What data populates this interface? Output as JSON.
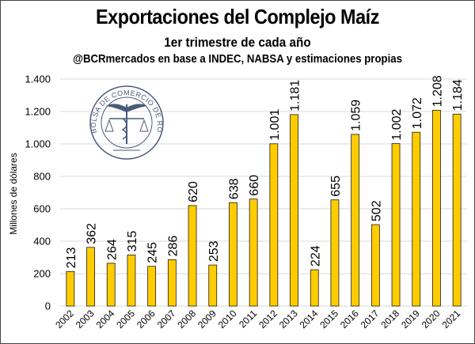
{
  "chart_data": {
    "type": "bar",
    "title": "Exportaciones del Complejo Maíz",
    "subtitle": "1er trimestre de cada año",
    "source": "@BCRmercados en base a INDEC, NABSA y estimaciones propias",
    "xlabel": "",
    "ylabel": "Millones de dólares",
    "ylim": [
      0,
      1400
    ],
    "yticks": [
      0,
      200,
      400,
      600,
      800,
      1000,
      1200,
      1400
    ],
    "ytick_labels": [
      "0",
      "200",
      "400",
      "600",
      "800",
      "1.000",
      "1.200",
      "1.400"
    ],
    "grid": true,
    "categories": [
      "2002",
      "2003",
      "2004",
      "2005",
      "2006",
      "2007",
      "2008",
      "2009",
      "2010",
      "2011",
      "2012",
      "2013",
      "2014",
      "2015",
      "2016",
      "2017",
      "2018",
      "2019",
      "2020",
      "2021"
    ],
    "values": [
      213,
      362,
      264,
      315,
      245,
      286,
      620,
      253,
      638,
      660,
      1001,
      1181,
      224,
      655,
      1059,
      502,
      1002,
      1072,
      1208,
      1184
    ],
    "value_labels": [
      "213",
      "362",
      "264",
      "315",
      "245",
      "286",
      "620",
      "253",
      "638",
      "660",
      "1.001",
      "1.181",
      "224",
      "655",
      "1.059",
      "502",
      "1.002",
      "1.072",
      "1.208",
      "1.184"
    ],
    "bar_color": "#FFCC00",
    "bar_edge_color": "#1a1a1a",
    "grid_color": "#d9d9d9"
  },
  "logo": {
    "text": "BOLSA DE COMERCIO DE ROSARIO"
  }
}
